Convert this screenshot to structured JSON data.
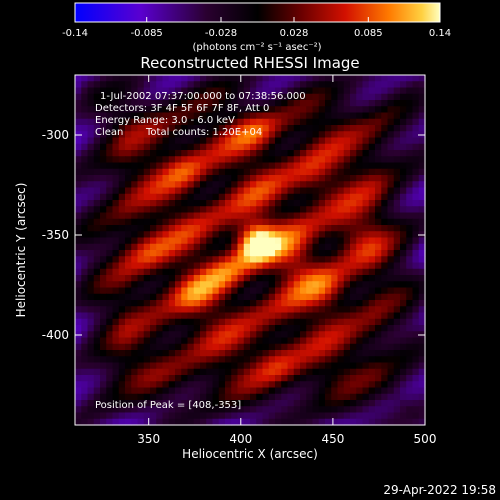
{
  "chart_data": {
    "type": "heatmap",
    "title": "Reconstructed RHESSI Image",
    "colorbar": {
      "ticks": [
        "-0.14",
        "-0.085",
        "-0.028",
        "0.028",
        "0.085",
        "0.14"
      ],
      "range": [
        -0.14,
        0.14
      ],
      "unit_label": "(photons cm⁻² s⁻¹ asec⁻²)",
      "colormap": [
        "#0000ff",
        "#5500cc",
        "#3a003a",
        "#000000",
        "#4a0000",
        "#c00000",
        "#ff5a00",
        "#ffb400",
        "#ffffb0"
      ]
    },
    "xaxis": {
      "label": "Heliocentric X (arcsec)",
      "ticks": [
        350,
        400,
        450,
        500
      ],
      "range": [
        310,
        500
      ]
    },
    "yaxis": {
      "label": "Heliocentric Y (arcsec)",
      "ticks": [
        -300,
        -350,
        -400
      ],
      "range": [
        -445,
        -270
      ]
    },
    "peak": {
      "x": 408,
      "y": -353
    },
    "annotations": {
      "time": "1-Jul-2002 07:37:00.000 to 07:38:56.000",
      "detectors": "Detectors: 3F 4F 5F 6F 7F 8F, Att 0",
      "energy": "Energy Range: 3.0 - 6.0 keV",
      "clean": "Clean",
      "counts": "Total counts: 1.20E+04",
      "peak_text": "Position of Peak = [408,-353]"
    }
  },
  "footer": {
    "timestamp": "29-Apr-2022 19:58"
  }
}
